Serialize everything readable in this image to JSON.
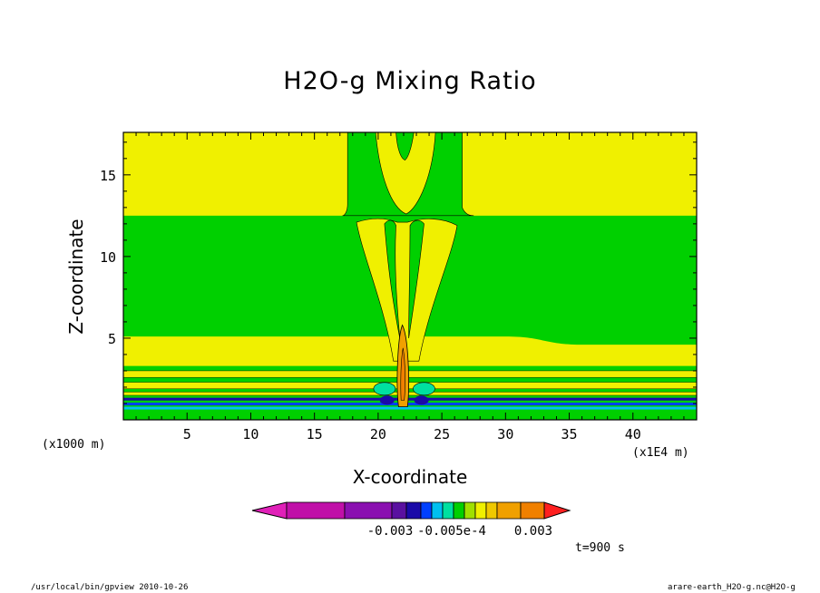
{
  "chart_data": {
    "type": "heatmap",
    "title": "H2O-g Mixing Ratio",
    "xlabel": "X-coordinate",
    "ylabel": "Z-coordinate",
    "x_unit_label": "(x1E4 m)",
    "y_unit_label": "(x1000 m)",
    "xlim": [
      0,
      45
    ],
    "ylim": [
      0,
      17.6
    ],
    "x_ticks": [
      "5",
      "10",
      "15",
      "20",
      "25",
      "30",
      "35",
      "40"
    ],
    "x_tick_values": [
      5,
      10,
      15,
      20,
      25,
      30,
      35,
      40
    ],
    "y_ticks": [
      "5",
      "10",
      "15"
    ],
    "y_tick_values": [
      5,
      10,
      15
    ],
    "colorbar": {
      "colors": [
        "#e020b8",
        "#c010a8",
        "#8a10b0",
        "#5a10a0",
        "#1a0aa8",
        "#0040ff",
        "#00c0f0",
        "#00e0a0",
        "#00d000",
        "#a0e000",
        "#f0f000",
        "#f0c800",
        "#f0a000",
        "#f08000",
        "#ff2020"
      ],
      "labels": [
        "-0.003",
        "-0.005e-4",
        "0.003"
      ]
    },
    "regions": [
      {
        "name": "upper band",
        "z_range": [
          12.5,
          17.6
        ],
        "color": "#f0f000"
      },
      {
        "name": "middle band",
        "z_range": [
          5.1,
          12.5
        ],
        "color": "#00d000"
      },
      {
        "name": "lower band",
        "z_range": [
          3.3,
          5.1
        ],
        "color": "#f0f000"
      },
      {
        "name": "plume",
        "x_range": [
          18,
          26
        ],
        "z_range": [
          0,
          17.6
        ],
        "color": "#f0f000"
      },
      {
        "name": "core",
        "x_center": 22,
        "z_range": [
          0.8,
          5.8
        ],
        "color": "#f0a000"
      }
    ],
    "time_label": "t=900 s"
  },
  "footer": {
    "left": "/usr/local/bin/gpview  2010-10-26",
    "right": "arare-earth_H2O-g.nc@H2O-g"
  },
  "colors": {
    "yellow": "#f0f000",
    "green": "#00d000",
    "orange": "#f0a000"
  }
}
